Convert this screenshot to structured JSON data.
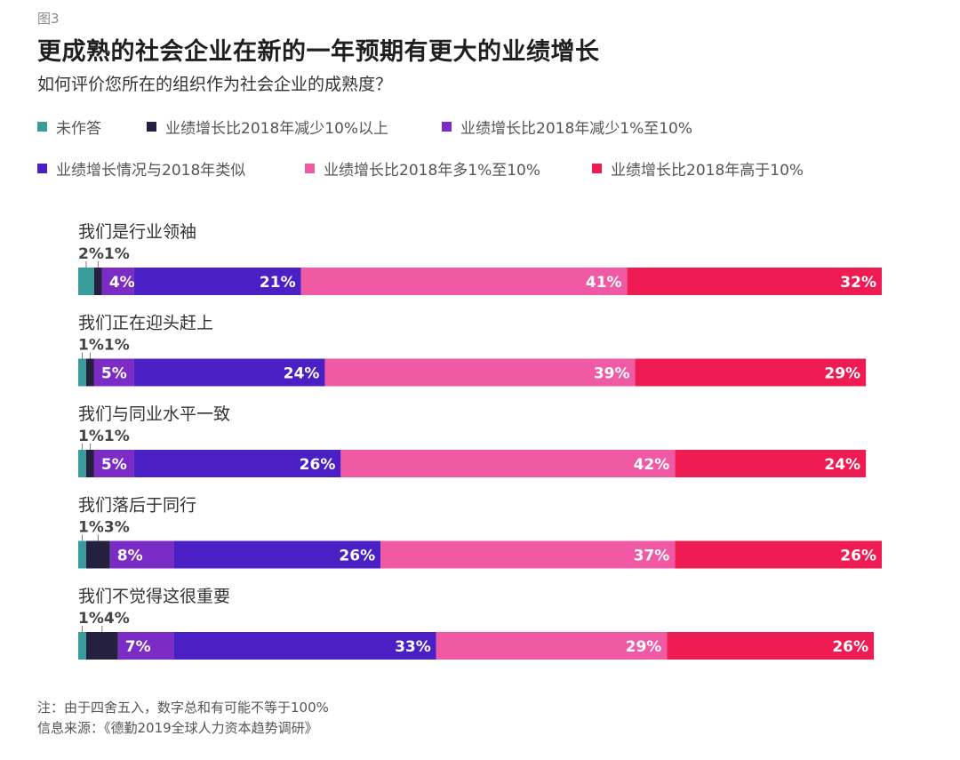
{
  "figure_label": "图3",
  "chart_data": {
    "type": "bar",
    "orientation": "horizontal",
    "stacked": true,
    "title": "更成熟的社会企业在新的一年预期有更大的业绩增长",
    "subtitle": "如何评价您所在的组织作为社会企业的成熟度？",
    "categories": [
      "我们是行业领袖",
      "我们正在迎头赶上",
      "我们与同业水平一致",
      "我们落后于同行",
      "我们不觉得这很重要"
    ],
    "series": [
      {
        "name": "未作答",
        "color": "#3a9b9b",
        "values": [
          2,
          1,
          1,
          1,
          1
        ],
        "labels": [
          "2%",
          "1%",
          "1%",
          "1%",
          "1%"
        ]
      },
      {
        "name": "业绩增长比2018年减少10%以上",
        "color": "#25203f",
        "values": [
          1,
          1,
          1,
          3,
          4
        ],
        "labels": [
          "1%",
          "1%",
          "1%",
          "3%",
          "4%"
        ]
      },
      {
        "name": "业绩增长比2018年减少1%至10%",
        "color": "#7a2cc5",
        "values": [
          4,
          5,
          5,
          8,
          7
        ],
        "labels": [
          "4%",
          "5%",
          "5%",
          "8%",
          "7%"
        ]
      },
      {
        "name": "业绩增长情况与2018年类似",
        "color": "#4a1fc4",
        "values": [
          21,
          24,
          26,
          26,
          33
        ],
        "labels": [
          "21%",
          "24%",
          "26%",
          "26%",
          "33%"
        ]
      },
      {
        "name": "业绩增长比2018年多1%至10%",
        "color": "#f05aa4",
        "values": [
          41,
          39,
          42,
          37,
          29
        ],
        "labels": [
          "41%",
          "39%",
          "42%",
          "37%",
          "29%"
        ]
      },
      {
        "name": "业绩增长比2018年高于10%",
        "color": "#ee1c53",
        "values": [
          32,
          29,
          24,
          26,
          26
        ],
        "labels": [
          "32%",
          "29%",
          "24%",
          "26%",
          "26%"
        ]
      }
    ],
    "xlim": [
      0,
      101
    ]
  },
  "footnote": "注：由于四舍五入，数字总和有可能不等于100%",
  "source": "信息来源：《德勤2019全球人力资本趋势调研》"
}
